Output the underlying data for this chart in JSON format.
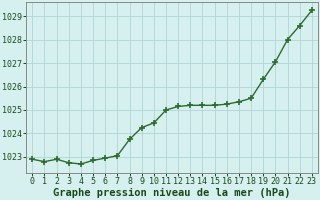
{
  "x": [
    0,
    1,
    2,
    3,
    4,
    5,
    6,
    7,
    8,
    9,
    10,
    11,
    12,
    13,
    14,
    15,
    16,
    17,
    18,
    19,
    20,
    21,
    22,
    23
  ],
  "y": [
    1022.9,
    1022.8,
    1022.9,
    1022.75,
    1022.7,
    1022.85,
    1022.95,
    1023.05,
    1023.75,
    1024.25,
    1024.45,
    1025.0,
    1025.15,
    1025.2,
    1025.2,
    1025.2,
    1025.25,
    1025.35,
    1025.5,
    1026.3,
    1027.05,
    1028.0,
    1028.6,
    1029.25
  ],
  "line_color": "#2d6a2d",
  "marker": "+",
  "marker_size": 4,
  "marker_lw": 1.2,
  "line_width": 1.0,
  "bg_color": "#d6f0f0",
  "grid_color": "#b0d4d4",
  "xlabel": "Graphe pression niveau de la mer (hPa)",
  "xlabel_fontsize": 7.5,
  "ylabel_ticks": [
    1023,
    1024,
    1025,
    1026,
    1027,
    1028,
    1029
  ],
  "ylim": [
    1022.3,
    1029.6
  ],
  "xlim": [
    -0.5,
    23.5
  ],
  "tick_fontsize": 6.0,
  "axis_label_color": "#1a4a1a",
  "spine_color": "#888888"
}
